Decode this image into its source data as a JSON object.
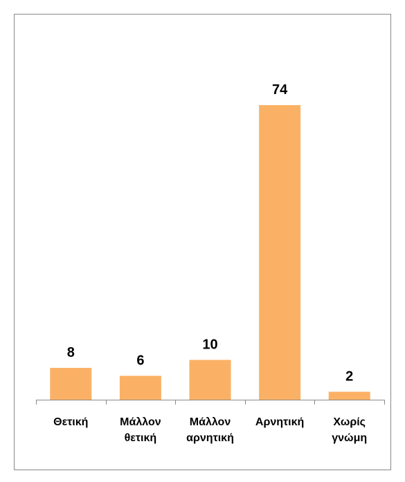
{
  "chart_data": {
    "type": "bar",
    "categories": [
      "Θετική",
      "Μάλλον θετική",
      "Μάλλον αρνητική",
      "Αρνητική",
      "Χωρίς γνώμη"
    ],
    "values": [
      8,
      6,
      10,
      74,
      2
    ],
    "color": "#fbb165"
  }
}
